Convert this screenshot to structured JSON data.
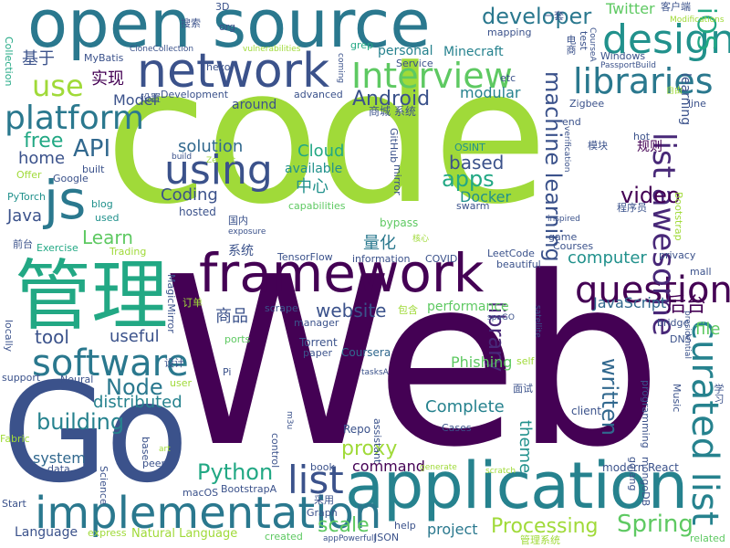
{
  "words": [
    {
      "text": "Web",
      "color": "#440154"
    },
    {
      "text": "code",
      "color": "#a0da39"
    },
    {
      "text": "open source",
      "color": "#2a788e"
    },
    {
      "text": "Go",
      "color": "#3b528b"
    },
    {
      "text": "application",
      "color": "#26828e"
    },
    {
      "text": "framework",
      "color": "#440154"
    },
    {
      "text": "network",
      "color": "#3b528b"
    },
    {
      "text": "管理",
      "color": "#22a884"
    },
    {
      "text": "implementation",
      "color": "#2a788e"
    },
    {
      "text": "curated list",
      "color": "#26828e"
    },
    {
      "text": "Interview",
      "color": "#5ec962"
    },
    {
      "text": "design",
      "color": "#21918c"
    },
    {
      "text": "libraries",
      "color": "#2a788e"
    },
    {
      "text": "platform",
      "color": "#2a788e"
    },
    {
      "text": "js",
      "color": "#2a788e"
    },
    {
      "text": "using",
      "color": "#3b528b"
    },
    {
      "text": "questions",
      "color": "#440154"
    },
    {
      "text": "software",
      "color": "#2a788e"
    },
    {
      "text": "list",
      "color": "#3b528b"
    },
    {
      "text": "use",
      "color": "#a0da39"
    },
    {
      "text": "developer",
      "color": "#2a788e"
    },
    {
      "text": "iOS",
      "color": "#22a884"
    },
    {
      "text": "list awesome",
      "color": "#482878"
    },
    {
      "text": "machine learning",
      "color": "#3b528b"
    },
    {
      "text": "API",
      "color": "#31688e"
    },
    {
      "text": "Python",
      "color": "#22a884"
    },
    {
      "text": "Node",
      "color": "#2a788e"
    },
    {
      "text": "Spring",
      "color": "#5ec962"
    },
    {
      "text": "Processing",
      "color": "#a0da39"
    },
    {
      "text": "building",
      "color": "#26828e"
    },
    {
      "text": "Android",
      "color": "#3b528b"
    },
    {
      "text": "apps",
      "color": "#22a884"
    },
    {
      "text": "based",
      "color": "#3b528b"
    },
    {
      "text": "video",
      "color": "#440154"
    },
    {
      "text": "written",
      "color": "#31688e"
    },
    {
      "text": "library",
      "color": "#482878"
    },
    {
      "text": "scale",
      "color": "#5ec962"
    },
    {
      "text": "proxy",
      "color": "#a0da39"
    },
    {
      "text": "free",
      "color": "#22a884"
    },
    {
      "text": "home",
      "color": "#3b528b"
    },
    {
      "text": "Coding",
      "color": "#3b528b"
    },
    {
      "text": "solution",
      "color": "#31688e"
    },
    {
      "text": "Cloud",
      "color": "#22a884"
    },
    {
      "text": "Learn",
      "color": "#5ec962"
    },
    {
      "text": "tool",
      "color": "#3b528b"
    },
    {
      "text": "useful",
      "color": "#3b528b"
    },
    {
      "text": "distributed",
      "color": "#26828e"
    },
    {
      "text": "Complete",
      "color": "#26828e"
    },
    {
      "text": "theme",
      "color": "#21918c"
    },
    {
      "text": "website",
      "color": "#3b528b"
    },
    {
      "text": "computer",
      "color": "#21918c"
    },
    {
      "text": "JavaScript",
      "color": "#31688e"
    },
    {
      "text": "后台",
      "color": "#440154"
    },
    {
      "text": "file",
      "color": "#5ec962"
    },
    {
      "text": "Java",
      "color": "#3b528b"
    },
    {
      "text": "project",
      "color": "#2a788e"
    },
    {
      "text": "Language",
      "color": "#3b528b"
    },
    {
      "text": "商品",
      "color": "#3b528b"
    },
    {
      "text": "Docker",
      "color": "#21918c"
    },
    {
      "text": "中心",
      "color": "#21918c"
    },
    {
      "text": "量化",
      "color": "#2a788e"
    },
    {
      "text": "实现",
      "color": "#440154"
    },
    {
      "text": "基于",
      "color": "#3b528b"
    },
    {
      "text": "Model",
      "color": "#3b528b"
    },
    {
      "text": "modular",
      "color": "#26828e"
    },
    {
      "text": "personal",
      "color": "#26828e"
    },
    {
      "text": "Minecraft",
      "color": "#26828e"
    },
    {
      "text": "Twitter",
      "color": "#5ec962"
    },
    {
      "text": "available",
      "color": "#21918c"
    },
    {
      "text": "performance",
      "color": "#5ec962"
    },
    {
      "text": "system",
      "color": "#31688e"
    },
    {
      "text": "command",
      "color": "#440154"
    },
    {
      "text": "Phishing",
      "color": "#5ec962"
    },
    {
      "text": "around",
      "color": "#3b528b"
    },
    {
      "text": "Graph",
      "color": "#3b528b"
    },
    {
      "text": "Natural Language",
      "color": "#a0da39"
    },
    {
      "text": "Torrent",
      "color": "#3b528b"
    },
    {
      "text": "paper",
      "color": "#3b528b"
    },
    {
      "text": "Coursera",
      "color": "#31688e"
    },
    {
      "text": "book",
      "color": "#3b528b"
    },
    {
      "text": "Repo",
      "color": "#3b528b"
    },
    {
      "text": "Cases",
      "color": "#3b528b"
    },
    {
      "text": "client",
      "color": "#3b528b"
    },
    {
      "text": "modern",
      "color": "#3b528b"
    },
    {
      "text": "React",
      "color": "#3b528b"
    },
    {
      "text": "macOS",
      "color": "#3b528b"
    },
    {
      "text": "BootstrapA",
      "color": "#3b528b"
    },
    {
      "text": "JSON",
      "color": "#3b528b"
    },
    {
      "text": "created",
      "color": "#5ec962"
    },
    {
      "text": "express",
      "color": "#a0da39"
    },
    {
      "text": "help",
      "color": "#3b528b"
    },
    {
      "text": "related",
      "color": "#5ec962"
    },
    {
      "text": "game",
      "color": "#3b528b"
    },
    {
      "text": "Courses",
      "color": "#3b528b"
    },
    {
      "text": "mall",
      "color": "#3b528b"
    },
    {
      "text": "privacy",
      "color": "#3b528b"
    },
    {
      "text": "bridge",
      "color": "#3b528b"
    },
    {
      "text": "DNS",
      "color": "#3b528b"
    },
    {
      "text": "LeetCode",
      "color": "#3b528b"
    },
    {
      "text": "beautiful",
      "color": "#3b528b"
    },
    {
      "text": "COVID",
      "color": "#3b528b"
    },
    {
      "text": "information",
      "color": "#3b528b"
    },
    {
      "text": "TensorFlow",
      "color": "#3b528b"
    },
    {
      "text": "系统",
      "color": "#3b528b"
    },
    {
      "text": "Exercise",
      "color": "#22a884"
    },
    {
      "text": "Trading",
      "color": "#a0da39"
    },
    {
      "text": "PyTorch",
      "color": "#21918c"
    },
    {
      "text": "blog",
      "color": "#21918c"
    },
    {
      "text": "used",
      "color": "#21918c"
    },
    {
      "text": "Offer",
      "color": "#a0da39"
    },
    {
      "text": "Google",
      "color": "#3b528b"
    },
    {
      "text": "built",
      "color": "#3b528b"
    },
    {
      "text": "hosted",
      "color": "#3b528b"
    },
    {
      "text": "国内",
      "color": "#3b528b"
    },
    {
      "text": "bypass",
      "color": "#5ec962"
    },
    {
      "text": "Development",
      "color": "#3b528b"
    },
    {
      "text": "advanced",
      "color": "#3b528b"
    },
    {
      "text": "MyBatis",
      "color": "#3b528b"
    },
    {
      "text": "Collection",
      "color": "#22a884"
    },
    {
      "text": "CloneCollection",
      "color": "#3b528b"
    },
    {
      "text": "hexo",
      "color": "#3b528b"
    },
    {
      "text": "org",
      "color": "#3b528b"
    },
    {
      "text": "3D",
      "color": "#3b528b"
    },
    {
      "text": "vulnerabilities",
      "color": "#a0da39"
    },
    {
      "text": "grep",
      "color": "#22a884"
    },
    {
      "text": "mapping",
      "color": "#3b528b"
    },
    {
      "text": "Service",
      "color": "#3b528b"
    },
    {
      "text": "etc",
      "color": "#3b528b"
    },
    {
      "text": "商城 系统",
      "color": "#3b528b"
    },
    {
      "text": "一套",
      "color": "#3b528b"
    },
    {
      "text": "客户端",
      "color": "#3b528b"
    },
    {
      "text": "Modifications",
      "color": "#a0da39"
    },
    {
      "text": "Windows",
      "color": "#3b528b"
    },
    {
      "text": "PassportBuild",
      "color": "#3b528b"
    },
    {
      "text": "Zigbee",
      "color": "#3b528b"
    },
    {
      "text": "end",
      "color": "#3b528b"
    },
    {
      "text": "hot",
      "color": "#3b528b"
    },
    {
      "text": "模块",
      "color": "#3b528b"
    },
    {
      "text": "规则",
      "color": "#440154"
    },
    {
      "text": "程序员",
      "color": "#3b528b"
    },
    {
      "text": "inspired",
      "color": "#3b528b"
    },
    {
      "text": "verification",
      "color": "#3b528b"
    },
    {
      "text": "OSINT",
      "color": "#21918c"
    },
    {
      "text": "GitHub",
      "color": "#3b528b"
    },
    {
      "text": "Zenbot",
      "color": "#a0da39"
    },
    {
      "text": "build",
      "color": "#3b528b"
    },
    {
      "text": "exposure",
      "color": "#3b528b"
    },
    {
      "text": "swarm",
      "color": "#3b528b"
    },
    {
      "text": "capabilities",
      "color": "#5ec962"
    },
    {
      "text": "MagicMirror",
      "color": "#3b528b"
    },
    {
      "text": "订单",
      "color": "#a0da39"
    },
    {
      "text": "包含",
      "color": "#a0da39"
    },
    {
      "text": "spaGO",
      "color": "#3b528b"
    },
    {
      "text": "scrape",
      "color": "#3b528b"
    },
    {
      "text": "manager",
      "color": "#3b528b"
    },
    {
      "text": "ports",
      "color": "#5ec962"
    },
    {
      "text": "设计",
      "color": "#3b528b"
    },
    {
      "text": "Pi",
      "color": "#3b528b"
    },
    {
      "text": "user",
      "color": "#a0da39"
    },
    {
      "text": "Neural",
      "color": "#3b528b"
    },
    {
      "text": "support",
      "color": "#3b528b"
    },
    {
      "text": "locally",
      "color": "#3b528b"
    },
    {
      "text": "前台",
      "color": "#3b528b"
    },
    {
      "text": "control",
      "color": "#3b528b"
    },
    {
      "text": "Fabric",
      "color": "#a0da39"
    },
    {
      "text": "data",
      "color": "#3b528b"
    },
    {
      "text": "Science",
      "color": "#3b528b"
    },
    {
      "text": "base",
      "color": "#3b528b"
    },
    {
      "text": "peer",
      "color": "#3b528b"
    },
    {
      "text": "art",
      "color": "#a0da39"
    },
    {
      "text": "assistant",
      "color": "#3b528b"
    },
    {
      "text": "tasksA",
      "color": "#3b528b"
    },
    {
      "text": "self",
      "color": "#a0da39"
    },
    {
      "text": "面试",
      "color": "#3b528b"
    },
    {
      "text": "programming",
      "color": "#3b528b"
    },
    {
      "text": "golang",
      "color": "#3b528b"
    },
    {
      "text": "mongoDB",
      "color": "#3b528b"
    },
    {
      "text": "Music",
      "color": "#3b528b"
    },
    {
      "text": "学习",
      "color": "#3b528b"
    },
    {
      "text": "presidential",
      "color": "#3b528b"
    },
    {
      "text": "satellite",
      "color": "#3b528b"
    },
    {
      "text": "Start",
      "color": "#3b528b"
    },
    {
      "text": "采用",
      "color": "#3b528b"
    },
    {
      "text": "appPowerfull",
      "color": "#3b528b"
    },
    {
      "text": "scratch",
      "color": "#a0da39"
    },
    {
      "text": "管理系统",
      "color": "#a0da39"
    },
    {
      "text": "generate",
      "color": "#a0da39"
    },
    {
      "text": "m3u",
      "color": "#3b528b"
    },
    {
      "text": "coming",
      "color": "#3b528b"
    },
    {
      "text": "test",
      "color": "#3b528b"
    },
    {
      "text": "电商",
      "color": "#3b528b"
    },
    {
      "text": "自由",
      "color": "#a0da39"
    },
    {
      "text": "搜索",
      "color": "#3b528b"
    },
    {
      "text": "设置",
      "color": "#3b528b"
    },
    {
      "text": "mirror",
      "color": "#3b528b"
    },
    {
      "text": "line",
      "color": "#3b528b"
    },
    {
      "text": "learning",
      "color": "#3b528b"
    },
    {
      "text": "Bootstrap",
      "color": "#a0da39"
    },
    {
      "text": "核心",
      "color": "#a0da39"
    },
    {
      "text": "CourseA",
      "color": "#3b528b"
    }
  ]
}
